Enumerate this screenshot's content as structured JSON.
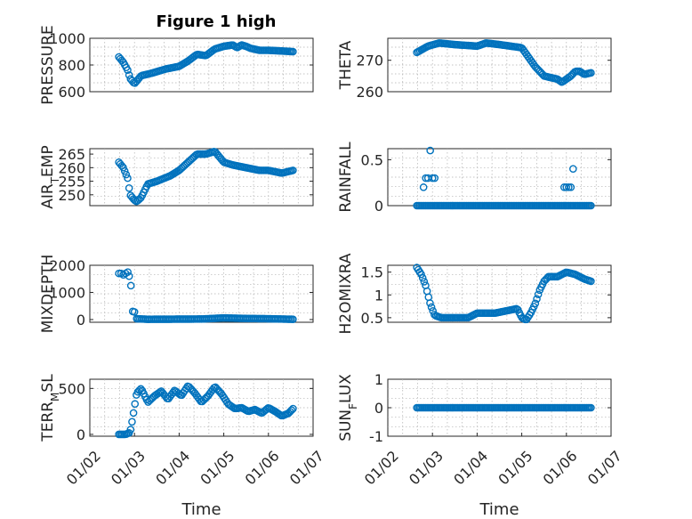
{
  "figure": {
    "title": "Figure 1 high",
    "marker_color": "#0072BD"
  },
  "chart_data": [
    {
      "type": "scatter",
      "ylabel": "PRESSURE",
      "ylabel_sub": "",
      "ylabel_tail": "",
      "xlabel": "",
      "ylim": [
        600,
        1000
      ],
      "yticks": [
        600,
        800,
        1000
      ],
      "yticklabels": [
        "600",
        "800",
        "1000"
      ],
      "xlim": [
        0,
        5
      ],
      "xticks": [],
      "xticklabels": [],
      "grid": true,
      "x_start": 0.65,
      "x_end": 4.55,
      "n_points": 120,
      "keypoints": [
        [
          0.65,
          860
        ],
        [
          0.75,
          820
        ],
        [
          0.85,
          760
        ],
        [
          0.9,
          700
        ],
        [
          1.0,
          660
        ],
        [
          1.05,
          680
        ],
        [
          1.15,
          720
        ],
        [
          1.4,
          740
        ],
        [
          1.7,
          770
        ],
        [
          2.0,
          790
        ],
        [
          2.2,
          830
        ],
        [
          2.4,
          880
        ],
        [
          2.6,
          870
        ],
        [
          2.8,
          920
        ],
        [
          3.0,
          940
        ],
        [
          3.2,
          950
        ],
        [
          3.3,
          930
        ],
        [
          3.4,
          950
        ],
        [
          3.5,
          940
        ],
        [
          3.6,
          925
        ],
        [
          3.8,
          910
        ],
        [
          4.0,
          910
        ],
        [
          4.3,
          905
        ],
        [
          4.55,
          900
        ]
      ]
    },
    {
      "type": "scatter",
      "ylabel": "THETA",
      "ylabel_sub": "",
      "ylabel_tail": "",
      "xlabel": "",
      "ylim": [
        260,
        277
      ],
      "yticks": [
        260,
        270
      ],
      "yticklabels": [
        "260",
        "270"
      ],
      "xlim": [
        0,
        5
      ],
      "xticks": [],
      "xticklabels": [],
      "grid": true,
      "x_start": 0.65,
      "x_end": 4.55,
      "n_points": 120,
      "keypoints": [
        [
          0.65,
          272.5
        ],
        [
          0.9,
          274.5
        ],
        [
          1.15,
          275.5
        ],
        [
          1.5,
          275
        ],
        [
          2.0,
          274.5
        ],
        [
          2.2,
          275.5
        ],
        [
          2.5,
          275
        ],
        [
          3.0,
          274
        ],
        [
          3.1,
          272
        ],
        [
          3.3,
          268
        ],
        [
          3.5,
          265
        ],
        [
          3.8,
          264
        ],
        [
          3.9,
          263
        ],
        [
          4.1,
          265
        ],
        [
          4.2,
          266.5
        ],
        [
          4.3,
          266.5
        ],
        [
          4.4,
          265.5
        ],
        [
          4.55,
          266
        ]
      ]
    },
    {
      "type": "scatter",
      "ylabel": "AIR",
      "ylabel_sub": "T",
      "ylabel_tail": "EMP",
      "xlabel": "",
      "ylim": [
        246,
        267
      ],
      "yticks": [
        250,
        255,
        260,
        265
      ],
      "yticklabels": [
        "250",
        "255",
        "260",
        "265"
      ],
      "xlim": [
        0,
        5
      ],
      "xticks": [],
      "xticklabels": [],
      "grid": true,
      "x_start": 0.65,
      "x_end": 4.55,
      "n_points": 120,
      "keypoints": [
        [
          0.65,
          262
        ],
        [
          0.75,
          260
        ],
        [
          0.85,
          256
        ],
        [
          0.9,
          250
        ],
        [
          1.0,
          248
        ],
        [
          1.05,
          247.5
        ],
        [
          1.15,
          249
        ],
        [
          1.3,
          254
        ],
        [
          1.5,
          255
        ],
        [
          1.8,
          257
        ],
        [
          2.0,
          259
        ],
        [
          2.2,
          262
        ],
        [
          2.4,
          265
        ],
        [
          2.6,
          265
        ],
        [
          2.8,
          266
        ],
        [
          3.0,
          262
        ],
        [
          3.2,
          261
        ],
        [
          3.5,
          260
        ],
        [
          3.8,
          259
        ],
        [
          4.0,
          259
        ],
        [
          4.3,
          258
        ],
        [
          4.55,
          259
        ]
      ]
    },
    {
      "type": "scatter",
      "ylabel": "RAINFALL",
      "ylabel_sub": "",
      "ylabel_tail": "",
      "xlabel": "",
      "ylim": [
        0,
        0.62
      ],
      "yticks": [
        0,
        0.5
      ],
      "yticklabels": [
        "0",
        "0.5"
      ],
      "xlim": [
        0,
        5
      ],
      "xticks": [],
      "xticklabels": [],
      "grid": true,
      "x_start": 0.65,
      "x_end": 4.55,
      "n_points": 120,
      "keypoints": [
        [
          0.65,
          0
        ],
        [
          4.55,
          0
        ]
      ],
      "extra_points": [
        [
          0.8,
          0.2
        ],
        [
          0.85,
          0.3
        ],
        [
          0.9,
          0.3
        ],
        [
          0.95,
          0.6
        ],
        [
          1.0,
          0.3
        ],
        [
          1.05,
          0.3
        ],
        [
          3.95,
          0.2
        ],
        [
          4.0,
          0.2
        ],
        [
          4.05,
          0.2
        ],
        [
          4.1,
          0.2
        ],
        [
          4.15,
          0.4
        ]
      ]
    },
    {
      "type": "scatter",
      "ylabel": "MIXDEPTH",
      "ylabel_sub": "",
      "ylabel_tail": "",
      "xlabel": "",
      "ylim": [
        -100,
        2000
      ],
      "yticks": [
        0,
        1000,
        2000
      ],
      "yticklabels": [
        "0",
        "1000",
        "2000"
      ],
      "xlim": [
        0,
        5
      ],
      "xticks": [],
      "xticklabels": [],
      "grid": true,
      "x_start": 1.05,
      "x_end": 4.55,
      "n_points": 100,
      "keypoints": [
        [
          1.05,
          30
        ],
        [
          1.3,
          10
        ],
        [
          2.5,
          20
        ],
        [
          3.0,
          60
        ],
        [
          3.5,
          40
        ],
        [
          4.0,
          30
        ],
        [
          4.55,
          10
        ]
      ],
      "extra_points": [
        [
          0.65,
          1700
        ],
        [
          0.7,
          1700
        ],
        [
          0.75,
          1650
        ],
        [
          0.8,
          1700
        ],
        [
          0.85,
          1750
        ],
        [
          0.88,
          1600
        ],
        [
          0.92,
          1250
        ],
        [
          0.96,
          300
        ],
        [
          1.0,
          280
        ]
      ]
    },
    {
      "type": "scatter",
      "ylabel": "H2OMIXRA",
      "ylabel_sub": "",
      "ylabel_tail": "",
      "xlabel": "",
      "ylim": [
        0.4,
        1.65
      ],
      "yticks": [
        0.5,
        1,
        1.5
      ],
      "yticklabels": [
        "0.5",
        "1",
        "1.5"
      ],
      "xlim": [
        0,
        5
      ],
      "xticks": [],
      "xticklabels": [],
      "grid": true,
      "x_start": 0.65,
      "x_end": 4.55,
      "n_points": 120,
      "keypoints": [
        [
          0.65,
          1.6
        ],
        [
          0.75,
          1.45
        ],
        [
          0.85,
          1.2
        ],
        [
          0.95,
          0.8
        ],
        [
          1.05,
          0.55
        ],
        [
          1.2,
          0.5
        ],
        [
          1.8,
          0.5
        ],
        [
          2.0,
          0.6
        ],
        [
          2.4,
          0.6
        ],
        [
          2.9,
          0.7
        ],
        [
          3.0,
          0.5
        ],
        [
          3.1,
          0.45
        ],
        [
          3.2,
          0.6
        ],
        [
          3.3,
          0.8
        ],
        [
          3.4,
          1.1
        ],
        [
          3.5,
          1.3
        ],
        [
          3.6,
          1.4
        ],
        [
          3.8,
          1.4
        ],
        [
          4.0,
          1.5
        ],
        [
          4.2,
          1.45
        ],
        [
          4.4,
          1.35
        ],
        [
          4.55,
          1.3
        ]
      ]
    },
    {
      "type": "scatter",
      "ylabel": "TERR",
      "ylabel_sub": "M",
      "ylabel_tail": "SL",
      "xlabel": "Time",
      "ylim": [
        -20,
        600
      ],
      "yticks": [
        0,
        500
      ],
      "yticklabels": [
        "0",
        "500"
      ],
      "xlim": [
        0,
        5
      ],
      "xticks": [
        0,
        1,
        2,
        3,
        4,
        5
      ],
      "xticklabels": [
        "01/02",
        "01/03",
        "01/04",
        "01/05",
        "01/06",
        "01/07"
      ],
      "grid": true,
      "x_start": 0.65,
      "x_end": 4.55,
      "n_points": 120,
      "keypoints": [
        [
          0.65,
          0
        ],
        [
          0.8,
          0
        ],
        [
          0.9,
          20
        ],
        [
          0.95,
          150
        ],
        [
          1.0,
          300
        ],
        [
          1.05,
          450
        ],
        [
          1.15,
          500
        ],
        [
          1.3,
          350
        ],
        [
          1.45,
          420
        ],
        [
          1.6,
          470
        ],
        [
          1.75,
          380
        ],
        [
          1.9,
          480
        ],
        [
          2.05,
          420
        ],
        [
          2.2,
          530
        ],
        [
          2.35,
          450
        ],
        [
          2.5,
          350
        ],
        [
          2.65,
          420
        ],
        [
          2.8,
          520
        ],
        [
          2.95,
          440
        ],
        [
          3.1,
          330
        ],
        [
          3.25,
          280
        ],
        [
          3.4,
          290
        ],
        [
          3.55,
          250
        ],
        [
          3.7,
          270
        ],
        [
          3.85,
          230
        ],
        [
          4.0,
          290
        ],
        [
          4.15,
          250
        ],
        [
          4.3,
          200
        ],
        [
          4.45,
          230
        ],
        [
          4.55,
          280
        ]
      ]
    },
    {
      "type": "scatter",
      "ylabel": "SUN",
      "ylabel_sub": "F",
      "ylabel_tail": "LUX",
      "xlabel": "Time",
      "ylim": [
        -1,
        1
      ],
      "yticks": [
        -1,
        0,
        1
      ],
      "yticklabels": [
        "-1",
        "0",
        "1"
      ],
      "xlim": [
        0,
        5
      ],
      "xticks": [
        0,
        1,
        2,
        3,
        4,
        5
      ],
      "xticklabels": [
        "01/02",
        "01/03",
        "01/04",
        "01/05",
        "01/06",
        "01/07"
      ],
      "grid": true,
      "x_start": 0.65,
      "x_end": 4.55,
      "n_points": 120,
      "keypoints": [
        [
          0.65,
          0
        ],
        [
          4.55,
          0
        ]
      ]
    }
  ]
}
